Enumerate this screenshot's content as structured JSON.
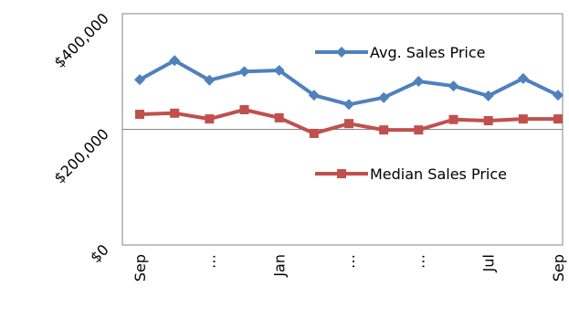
{
  "chart_data": {
    "type": "line",
    "categories": [
      "Sep",
      null,
      "…",
      null,
      "Jan",
      null,
      "…",
      null,
      "…",
      null,
      "Jul",
      null,
      "Sep"
    ],
    "series": [
      {
        "name": "Avg. Sales Price",
        "color": "#4f81bd",
        "marker": "diamond",
        "values": [
          286000,
          319000,
          285000,
          300000,
          302000,
          259000,
          243000,
          255000,
          283000,
          275000,
          258000,
          288000,
          259000
        ]
      },
      {
        "name": "Median Sales Price",
        "color": "#c0504d",
        "marker": "square",
        "values": [
          226000,
          228000,
          218000,
          234000,
          220000,
          193000,
          210000,
          199000,
          199000,
          217000,
          215000,
          218000,
          218000
        ]
      }
    ],
    "ylim": [
      0,
      400000
    ],
    "yticks": [
      {
        "value": 0,
        "label": "$0"
      },
      {
        "value": 200000,
        "label": "$200,000"
      },
      {
        "value": 400000,
        "label": "$400,000"
      }
    ],
    "grid": true
  }
}
